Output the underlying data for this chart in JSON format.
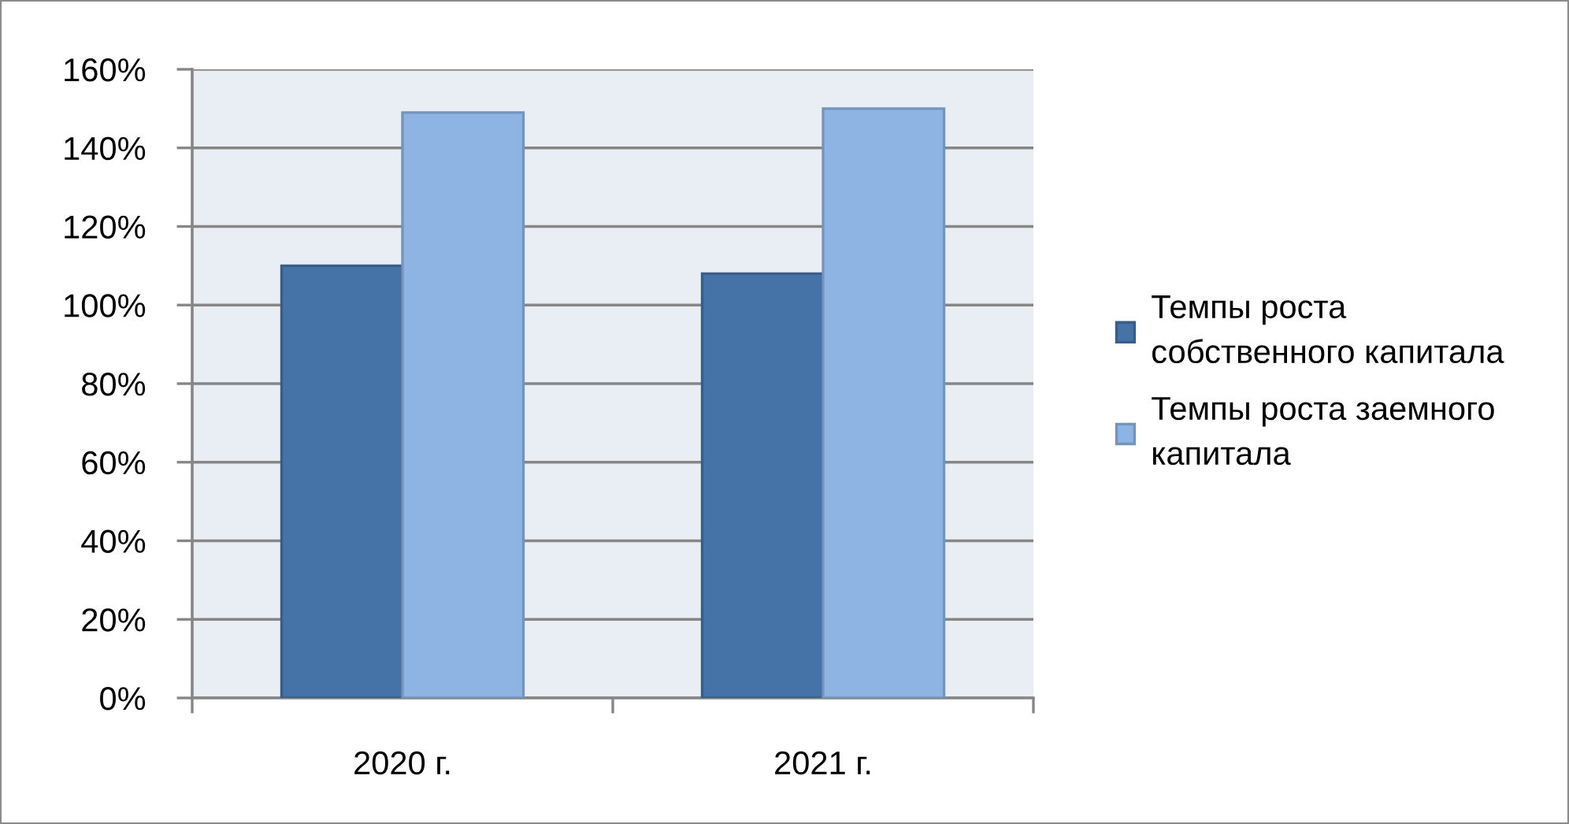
{
  "chart_data": {
    "type": "bar",
    "categories": [
      "2020 г.",
      "2021 г."
    ],
    "series": [
      {
        "name": "Темпы роста собственного капитала",
        "color": "#4572a7",
        "values": [
          110,
          108
        ]
      },
      {
        "name": "Темпы роста заемного капитала",
        "color": "#8eb4e3",
        "values": [
          149,
          150
        ]
      }
    ],
    "ylim": [
      0,
      160
    ],
    "yticks": [
      {
        "value": 0,
        "label": "0%"
      },
      {
        "value": 20,
        "label": "20%"
      },
      {
        "value": 40,
        "label": "40%"
      },
      {
        "value": 60,
        "label": "60%"
      },
      {
        "value": 80,
        "label": "80%"
      },
      {
        "value": 100,
        "label": "100%"
      },
      {
        "value": 120,
        "label": "120%"
      },
      {
        "value": 140,
        "label": "140%"
      },
      {
        "value": 160,
        "label": "160%"
      }
    ],
    "grid": "y",
    "legend": "right"
  }
}
